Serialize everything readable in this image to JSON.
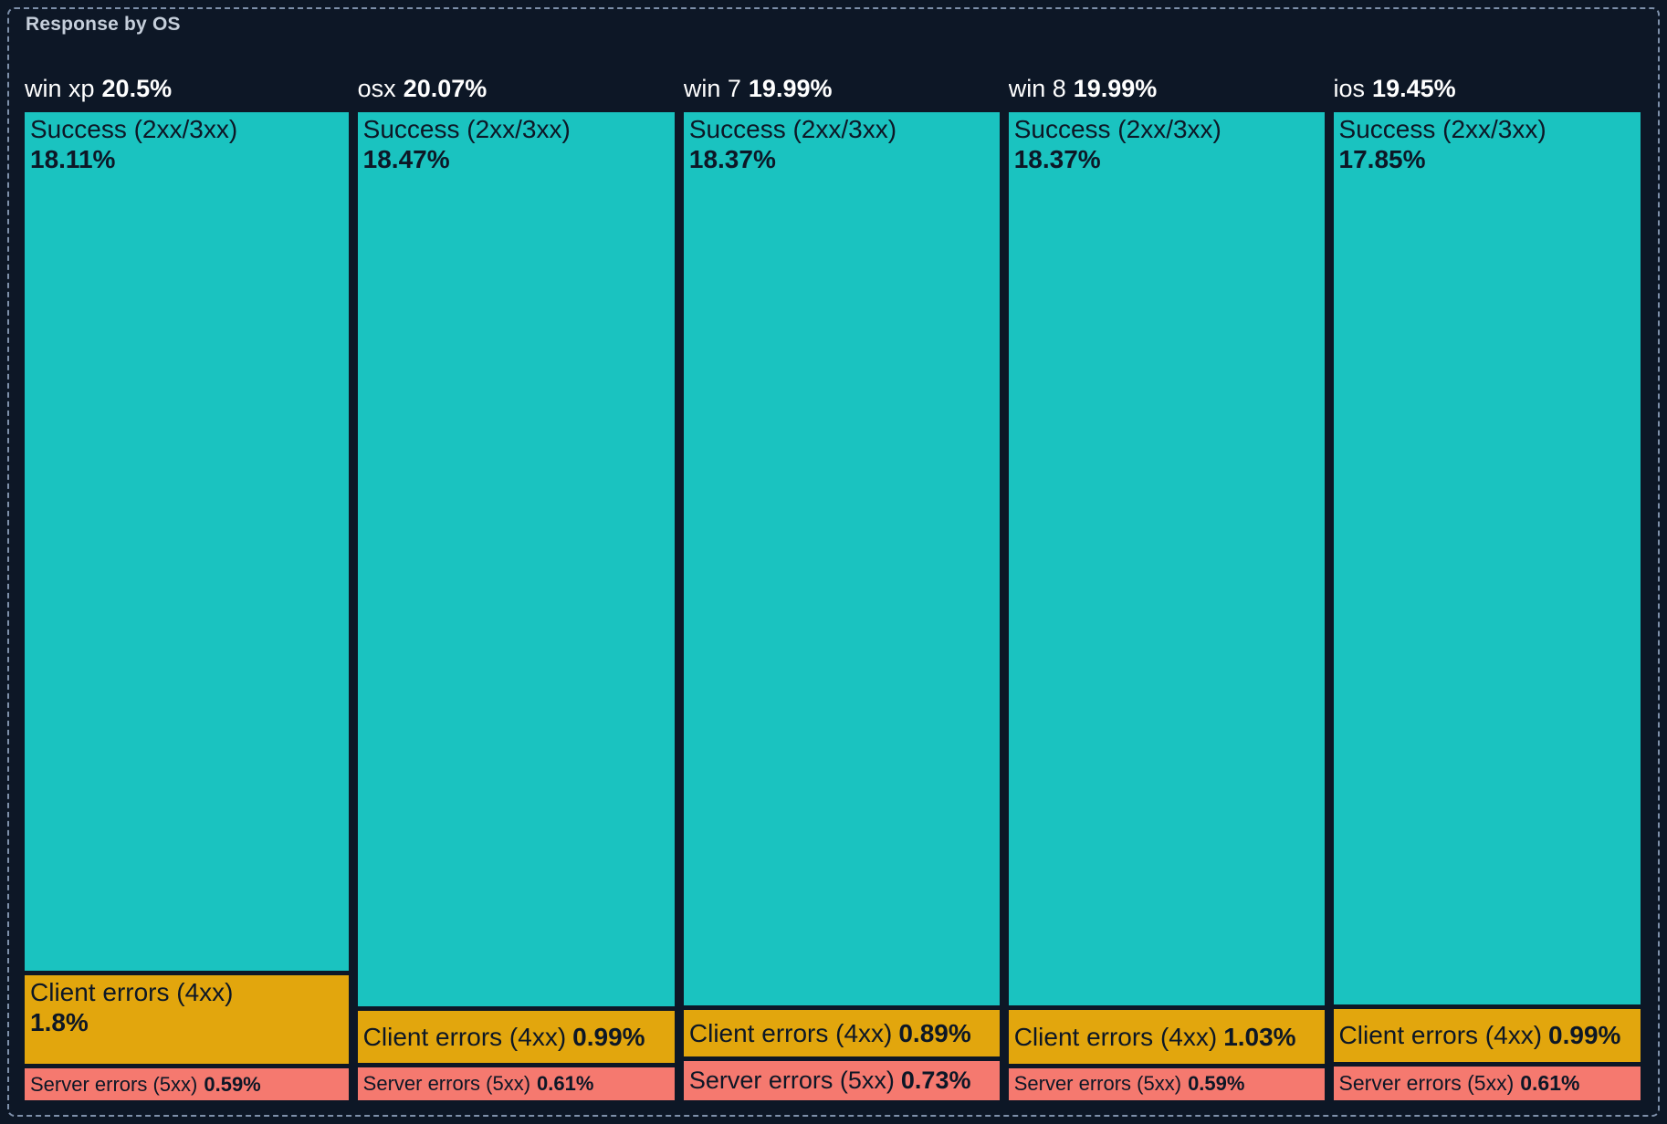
{
  "title": "Response by OS",
  "colors": {
    "background": "#0D1726",
    "panel_border": "#7E90AA",
    "title_text": "#C6CFDB",
    "header_text": "#FFFFFF",
    "block_text": "#0D1726",
    "success": "#1AC3C0",
    "client_errors": "#E2A60D",
    "server_errors": "#F5796F"
  },
  "chart_data": {
    "type": "treemap",
    "title": "Response by OS",
    "unit": "%",
    "categories": [
      "win xp",
      "osx",
      "win 7",
      "win 8",
      "ios"
    ],
    "category_totals": [
      20.5,
      20.07,
      19.99,
      19.99,
      19.45
    ],
    "series": [
      {
        "name": "Success (2xx/3xx)",
        "color": "#1AC3C0",
        "values": [
          18.11,
          18.47,
          18.37,
          18.37,
          17.85
        ]
      },
      {
        "name": "Client errors (4xx)",
        "color": "#E2A60D",
        "values": [
          1.8,
          0.99,
          0.89,
          1.03,
          0.99
        ]
      },
      {
        "name": "Server errors (5xx)",
        "color": "#F5796F",
        "values": [
          0.59,
          0.61,
          0.73,
          0.59,
          0.61
        ]
      }
    ],
    "layout": "column widths proportional to category totals; segments stacked vertically, heights proportional to values; legend off; axes off"
  },
  "columns": [
    {
      "name": "win xp",
      "total_display": "20.5%",
      "value": 20.5,
      "segments": [
        {
          "kind": "success",
          "name": "Success (2xx/3xx)",
          "value": 18.11,
          "display": "18.11%"
        },
        {
          "kind": "client",
          "name": "Client errors (4xx)",
          "value": 1.8,
          "display": "1.8%"
        },
        {
          "kind": "server",
          "name": "Server errors (5xx)",
          "value": 0.59,
          "display": "0.59%"
        }
      ]
    },
    {
      "name": "osx",
      "total_display": "20.07%",
      "value": 20.07,
      "segments": [
        {
          "kind": "success",
          "name": "Success (2xx/3xx)",
          "value": 18.47,
          "display": "18.47%"
        },
        {
          "kind": "client",
          "name": "Client errors (4xx)",
          "value": 0.99,
          "display": "0.99%"
        },
        {
          "kind": "server",
          "name": "Server errors (5xx)",
          "value": 0.61,
          "display": "0.61%"
        }
      ]
    },
    {
      "name": "win 7",
      "total_display": "19.99%",
      "value": 19.99,
      "segments": [
        {
          "kind": "success",
          "name": "Success (2xx/3xx)",
          "value": 18.37,
          "display": "18.37%"
        },
        {
          "kind": "client",
          "name": "Client errors (4xx)",
          "value": 0.89,
          "display": "0.89%"
        },
        {
          "kind": "server",
          "name": "Server errors (5xx)",
          "value": 0.73,
          "display": "0.73%"
        }
      ]
    },
    {
      "name": "win 8",
      "total_display": "19.99%",
      "value": 19.99,
      "segments": [
        {
          "kind": "success",
          "name": "Success (2xx/3xx)",
          "value": 18.37,
          "display": "18.37%"
        },
        {
          "kind": "client",
          "name": "Client errors (4xx)",
          "value": 1.03,
          "display": "1.03%"
        },
        {
          "kind": "server",
          "name": "Server errors (5xx)",
          "value": 0.59,
          "display": "0.59%"
        }
      ]
    },
    {
      "name": "ios",
      "total_display": "19.45%",
      "value": 19.45,
      "segments": [
        {
          "kind": "success",
          "name": "Success (2xx/3xx)",
          "value": 17.85,
          "display": "17.85%"
        },
        {
          "kind": "client",
          "name": "Client errors (4xx)",
          "value": 0.99,
          "display": "0.99%"
        },
        {
          "kind": "server",
          "name": "Server errors (5xx)",
          "value": 0.61,
          "display": "0.61%"
        }
      ]
    }
  ]
}
